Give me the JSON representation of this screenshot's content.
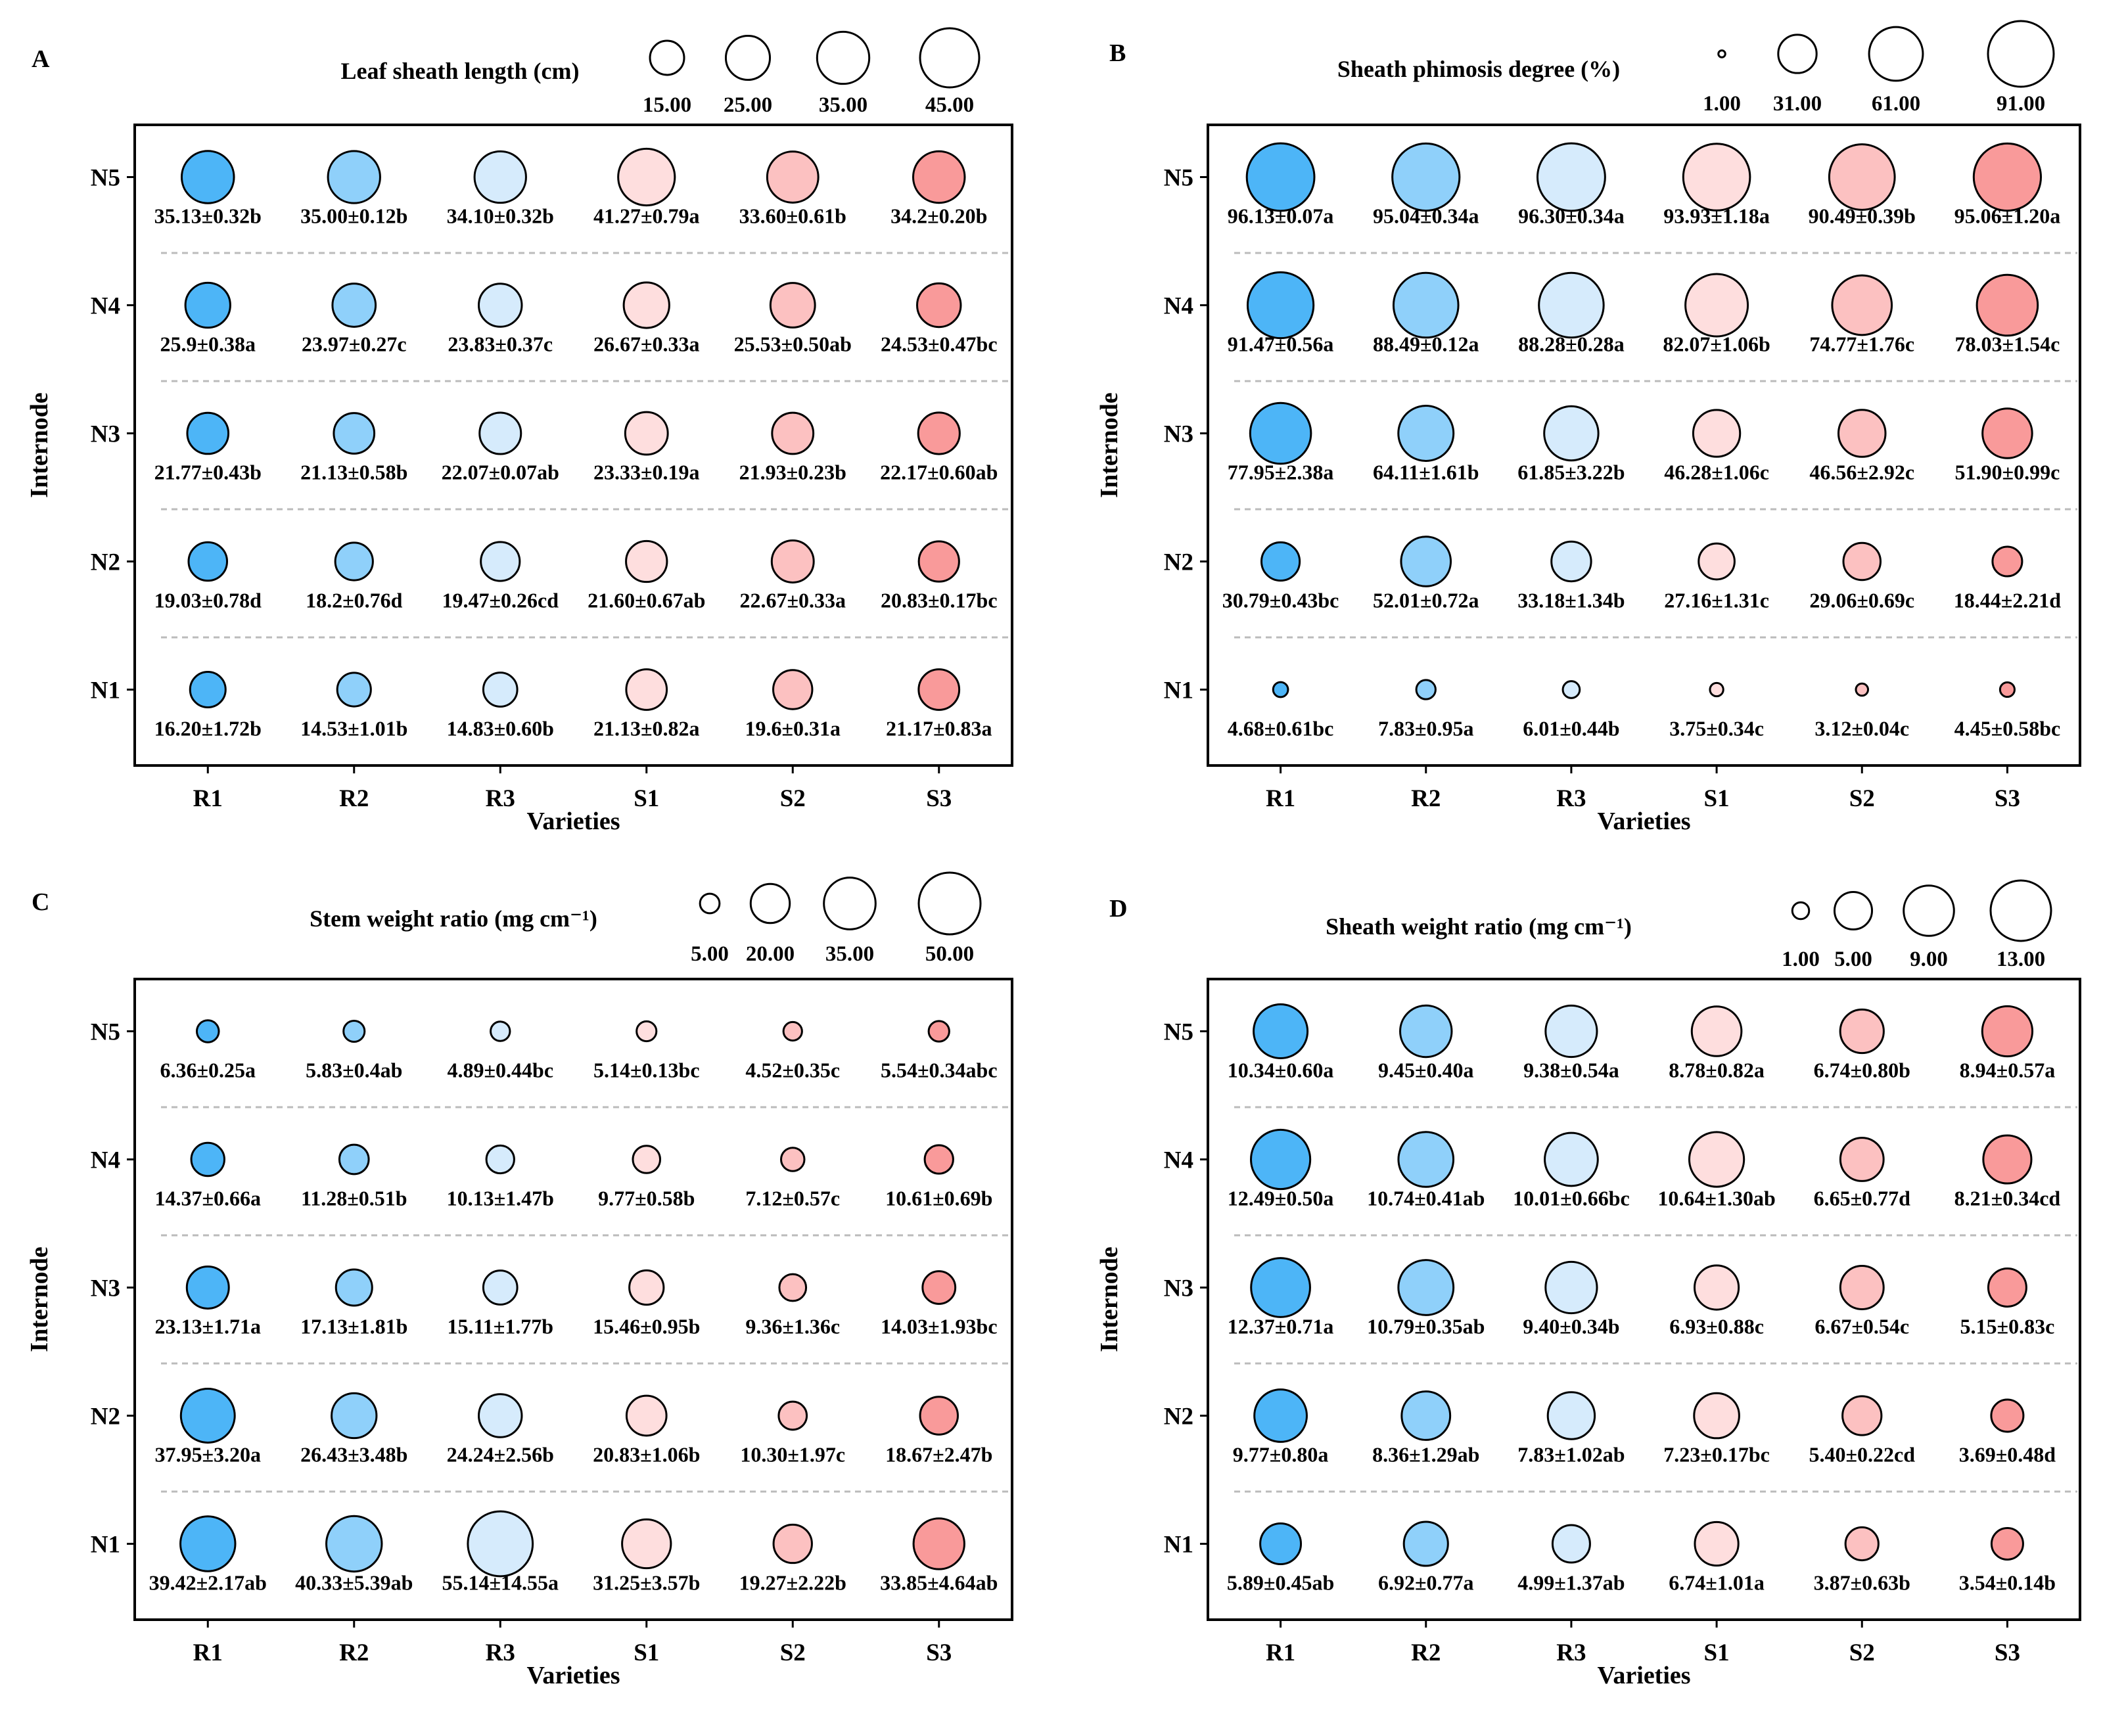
{
  "colors": {
    "R1": "#4db5f7",
    "R2": "#8fd0fa",
    "R3": "#d6ebfc",
    "S1": "#fedede",
    "S2": "#fcc1c1",
    "S3": "#f99a9a",
    "gridline": "#bbbbbb"
  },
  "chart_data": [
    {
      "type": "scatter",
      "panel": "A",
      "title": "Leaf sheath length (cm)",
      "xlabel": "Varieties",
      "ylabel": "Internode",
      "categories": [
        "R1",
        "R2",
        "R3",
        "S1",
        "S2",
        "S3"
      ],
      "rows": [
        "N5",
        "N4",
        "N3",
        "N2",
        "N1"
      ],
      "legend": {
        "values": [
          15,
          25,
          35,
          45
        ],
        "labels": [
          "15.00",
          "25.00",
          "35.00",
          "45.00"
        ]
      },
      "values": [
        [
          35.13,
          35.0,
          34.1,
          41.27,
          33.6,
          34.2
        ],
        [
          25.9,
          23.97,
          23.83,
          26.67,
          25.53,
          24.53
        ],
        [
          21.77,
          21.13,
          22.07,
          23.33,
          21.93,
          22.17
        ],
        [
          19.03,
          18.2,
          19.47,
          21.6,
          22.67,
          20.83
        ],
        [
          16.2,
          14.53,
          14.83,
          21.13,
          19.6,
          21.17
        ]
      ],
      "labels": [
        [
          "35.13±0.32b",
          "35.00±0.12b",
          "34.10±0.32b",
          "41.27±0.79a",
          "33.60±0.61b",
          "34.2±0.20b"
        ],
        [
          "25.9±0.38a",
          "23.97±0.27c",
          "23.83±0.37c",
          "26.67±0.33a",
          "25.53±0.50ab",
          "24.53±0.47bc"
        ],
        [
          "21.77±0.43b",
          "21.13±0.58b",
          "22.07±0.07ab",
          "23.33±0.19a",
          "21.93±0.23b",
          "22.17±0.60ab"
        ],
        [
          "19.03±0.78d",
          "18.2±0.76d",
          "19.47±0.26cd",
          "21.60±0.67ab",
          "22.67±0.33a",
          "20.83±0.17bc"
        ],
        [
          "16.20±1.72b",
          "14.53±1.01b",
          "14.83±0.60b",
          "21.13±0.82a",
          "19.6±0.31a",
          "21.17±0.83a"
        ]
      ]
    },
    {
      "type": "scatter",
      "panel": "B",
      "title": "Sheath phimosis degree (%)",
      "xlabel": "Varieties",
      "ylabel": "Internode",
      "categories": [
        "R1",
        "R2",
        "R3",
        "S1",
        "S2",
        "S3"
      ],
      "rows": [
        "N5",
        "N4",
        "N3",
        "N2",
        "N1"
      ],
      "legend": {
        "values": [
          1,
          31,
          61,
          91
        ],
        "labels": [
          "1.00",
          "31.00",
          "61.00",
          "91.00"
        ]
      },
      "values": [
        [
          96.13,
          95.04,
          96.3,
          93.93,
          90.49,
          95.06
        ],
        [
          91.47,
          88.49,
          88.28,
          82.07,
          74.77,
          78.03
        ],
        [
          77.95,
          64.11,
          61.85,
          46.28,
          46.56,
          51.9
        ],
        [
          30.79,
          52.01,
          33.18,
          27.16,
          29.06,
          18.44
        ],
        [
          4.68,
          7.83,
          6.01,
          3.75,
          3.12,
          4.45
        ]
      ],
      "labels": [
        [
          "96.13±0.07a",
          "95.04±0.34a",
          "96.30±0.34a",
          "93.93±1.18a",
          "90.49±0.39b",
          "95.06±1.20a"
        ],
        [
          "91.47±0.56a",
          "88.49±0.12a",
          "88.28±0.28a",
          "82.07±1.06b",
          "74.77±1.76c",
          "78.03±1.54c"
        ],
        [
          "77.95±2.38a",
          "64.11±1.61b",
          "61.85±3.22b",
          "46.28±1.06c",
          "46.56±2.92c",
          "51.90±0.99c"
        ],
        [
          "30.79±0.43bc",
          "52.01±0.72a",
          "33.18±1.34b",
          "27.16±1.31c",
          "29.06±0.69c",
          "18.44±2.21d"
        ],
        [
          "4.68±0.61bc",
          "7.83±0.95a",
          "6.01±0.44b",
          "3.75±0.34c",
          "3.12±0.04c",
          "4.45±0.58bc"
        ]
      ]
    },
    {
      "type": "scatter",
      "panel": "C",
      "title": "Stem weight ratio (mg cm⁻¹)",
      "xlabel": "Varieties",
      "ylabel": "Internode",
      "categories": [
        "R1",
        "R2",
        "R3",
        "S1",
        "S2",
        "S3"
      ],
      "rows": [
        "N5",
        "N4",
        "N3",
        "N2",
        "N1"
      ],
      "legend": {
        "values": [
          5,
          20,
          35,
          50
        ],
        "labels": [
          "5.00",
          "20.00",
          "35.00",
          "50.00"
        ]
      },
      "values": [
        [
          6.36,
          5.83,
          4.89,
          5.14,
          4.52,
          5.54
        ],
        [
          14.37,
          11.28,
          10.13,
          9.77,
          7.12,
          10.61
        ],
        [
          23.13,
          17.13,
          15.11,
          15.46,
          9.36,
          14.03
        ],
        [
          37.95,
          26.43,
          24.24,
          20.83,
          10.3,
          18.67
        ],
        [
          39.42,
          40.33,
          55.14,
          31.25,
          19.27,
          33.85
        ]
      ],
      "labels": [
        [
          "6.36±0.25a",
          "5.83±0.4ab",
          "4.89±0.44bc",
          "5.14±0.13bc",
          "4.52±0.35c",
          "5.54±0.34abc"
        ],
        [
          "14.37±0.66a",
          "11.28±0.51b",
          "10.13±1.47b",
          "9.77±0.58b",
          "7.12±0.57c",
          "10.61±0.69b"
        ],
        [
          "23.13±1.71a",
          "17.13±1.81b",
          "15.11±1.77b",
          "15.46±0.95b",
          "9.36±1.36c",
          "14.03±1.93bc"
        ],
        [
          "37.95±3.20a",
          "26.43±3.48b",
          "24.24±2.56b",
          "20.83±1.06b",
          "10.30±1.97c",
          "18.67±2.47b"
        ],
        [
          "39.42±2.17ab",
          "40.33±5.39ab",
          "55.14±14.55a",
          "31.25±3.57b",
          "19.27±2.22b",
          "33.85±4.64ab"
        ]
      ]
    },
    {
      "type": "scatter",
      "panel": "D",
      "title": "Sheath weight ratio (mg cm⁻¹)",
      "xlabel": "Varieties",
      "ylabel": "Internode",
      "categories": [
        "R1",
        "R2",
        "R3",
        "S1",
        "S2",
        "S3"
      ],
      "rows": [
        "N5",
        "N4",
        "N3",
        "N2",
        "N1"
      ],
      "legend": {
        "values": [
          1,
          5,
          9,
          13
        ],
        "labels": [
          "1.00",
          "5.00",
          "9.00",
          "13.00"
        ]
      },
      "values": [
        [
          10.34,
          9.45,
          9.38,
          8.78,
          6.74,
          8.94
        ],
        [
          12.49,
          10.74,
          10.01,
          10.64,
          6.65,
          8.21
        ],
        [
          12.37,
          10.79,
          9.4,
          6.93,
          6.67,
          5.15
        ],
        [
          9.77,
          8.36,
          7.83,
          7.23,
          5.4,
          3.69
        ],
        [
          5.89,
          6.92,
          4.99,
          6.74,
          3.87,
          3.54
        ]
      ],
      "labels": [
        [
          "10.34±0.60a",
          "9.45±0.40a",
          "9.38±0.54a",
          "8.78±0.82a",
          "6.74±0.80b",
          "8.94±0.57a"
        ],
        [
          "12.49±0.50a",
          "10.74±0.41ab",
          "10.01±0.66bc",
          "10.64±1.30ab",
          "6.65±0.77d",
          "8.21±0.34cd"
        ],
        [
          "12.37±0.71a",
          "10.79±0.35ab",
          "9.40±0.34b",
          "6.93±0.88c",
          "6.67±0.54c",
          "5.15±0.83c"
        ],
        [
          "9.77±0.80a",
          "8.36±1.29ab",
          "7.83±1.02ab",
          "7.23±0.17bc",
          "5.40±0.22cd",
          "3.69±0.48d"
        ],
        [
          "5.89±0.45ab",
          "6.92±0.77a",
          "4.99±1.37ab",
          "6.74±1.01a",
          "3.87±0.63b",
          "3.54±0.14b"
        ]
      ]
    }
  ]
}
